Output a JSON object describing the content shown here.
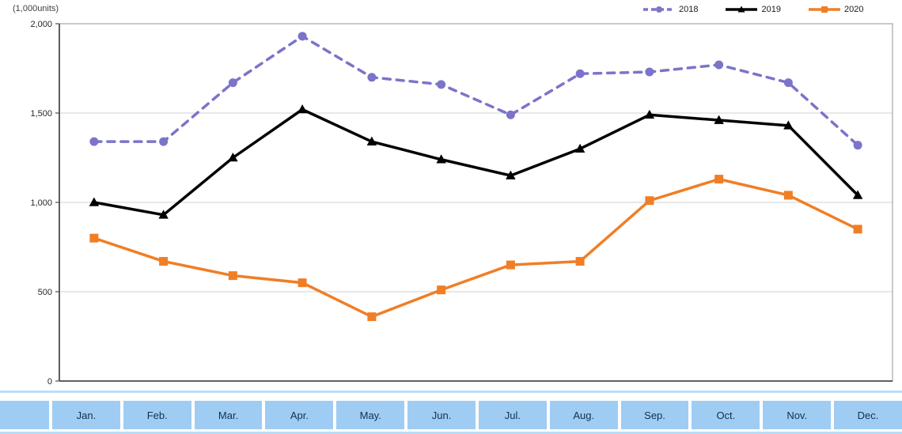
{
  "chart": {
    "units_label": "(1,000units)",
    "colors": {
      "gridline": "#D9D9D9",
      "plot_border": "#A6A6A6",
      "axis_line": "#4D4D4D",
      "tick_text": "#262626",
      "table_cell_fill": "#9FCCF3",
      "table_rule_fill": "#BCDDF6",
      "table_text": "#14304E"
    }
  },
  "chart_data": {
    "type": "line",
    "title": "",
    "xlabel": "",
    "ylabel": "(1,000units)",
    "ylim": [
      0,
      2000
    ],
    "grid": true,
    "legend_position": "top-right",
    "categories": [
      "Jan.",
      "Feb.",
      "Mar.",
      "Apr.",
      "May.",
      "Jun.",
      "Jul.",
      "Aug.",
      "Sep.",
      "Oct.",
      "Nov.",
      "Dec."
    ],
    "yticks": [
      {
        "value": 0,
        "label": "0"
      },
      {
        "value": 500,
        "label": "500"
      },
      {
        "value": 1000,
        "label": "1,000"
      },
      {
        "value": 1500,
        "label": "1,500"
      },
      {
        "value": 2000,
        "label": "2,000"
      }
    ],
    "series": [
      {
        "name": "2018",
        "color": "#7B74C9",
        "line_style": "dashed",
        "marker": "circle",
        "values": [
          1340,
          1340,
          1670,
          1930,
          1700,
          1660,
          1490,
          1720,
          1730,
          1770,
          1670,
          1320
        ]
      },
      {
        "name": "2019",
        "color": "#000000",
        "line_style": "solid",
        "marker": "triangle",
        "values": [
          1000,
          930,
          1250,
          1520,
          1340,
          1240,
          1150,
          1300,
          1490,
          1460,
          1430,
          1040
        ]
      },
      {
        "name": "2020",
        "color": "#F07E26",
        "line_style": "solid",
        "marker": "square",
        "values": [
          800,
          670,
          590,
          550,
          360,
          510,
          650,
          670,
          1010,
          1130,
          1040,
          850
        ]
      }
    ]
  },
  "month_table": {
    "label_cell": "",
    "months": [
      "Jan.",
      "Feb.",
      "Mar.",
      "Apr.",
      "May.",
      "Jun.",
      "Jul.",
      "Aug.",
      "Sep.",
      "Oct.",
      "Nov.",
      "Dec."
    ]
  }
}
